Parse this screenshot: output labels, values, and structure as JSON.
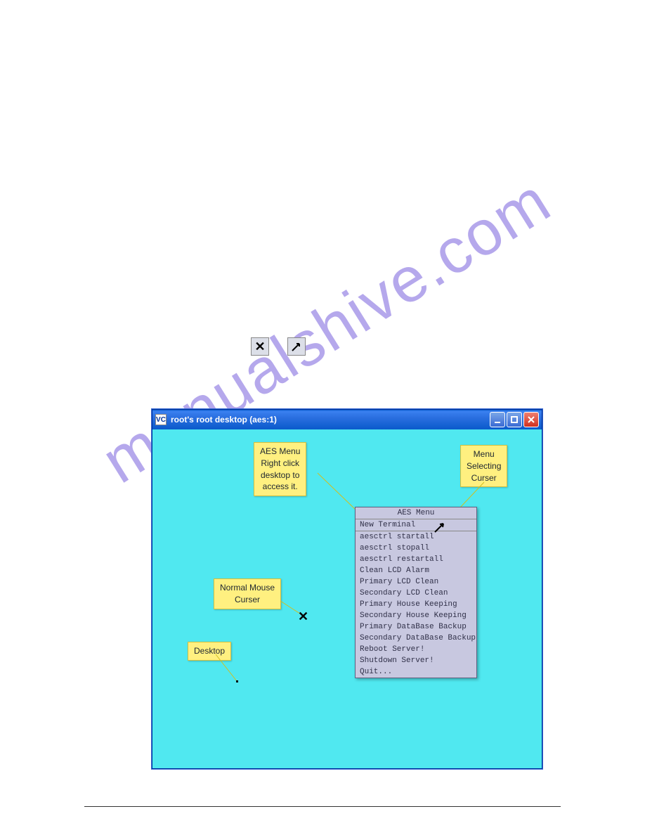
{
  "watermark": "manualshive.com",
  "window": {
    "title": "root's root desktop (aes:1)",
    "icon_label": "VC",
    "titlebar_gradient": [
      "#0a5acb",
      "#3a81f0"
    ],
    "desktop_bg": "#50e8f0"
  },
  "callouts": {
    "aes_menu": "AES Menu\nRight click\ndesktop to\naccess it.",
    "menu_curser": "Menu\nSelecting\nCurser",
    "normal_curser": "Normal Mouse\nCurser",
    "desktop": "Desktop",
    "callout_bg": "#fff080"
  },
  "cursors": {
    "x_glyph": "✕",
    "arrow_glyph": "➚"
  },
  "aes_menu": {
    "title": "AES Menu",
    "items": [
      "New Terminal",
      "aesctrl startall",
      "aesctrl stopall",
      "aesctrl restartall",
      "Clean LCD Alarm",
      "Primary LCD Clean",
      "Secondary LCD Clean",
      "Primary House Keeping",
      "Secondary House Keeping",
      "Primary DataBase Backup",
      "Secondary DataBase Backup",
      "Reboot Server!",
      "Shutdown Server!",
      "Quit..."
    ],
    "bg": "#c8c8e0",
    "text_color": "#303048"
  },
  "colors": {
    "close_btn": "#d03020",
    "minmax_btn": "#3a6ad4"
  }
}
